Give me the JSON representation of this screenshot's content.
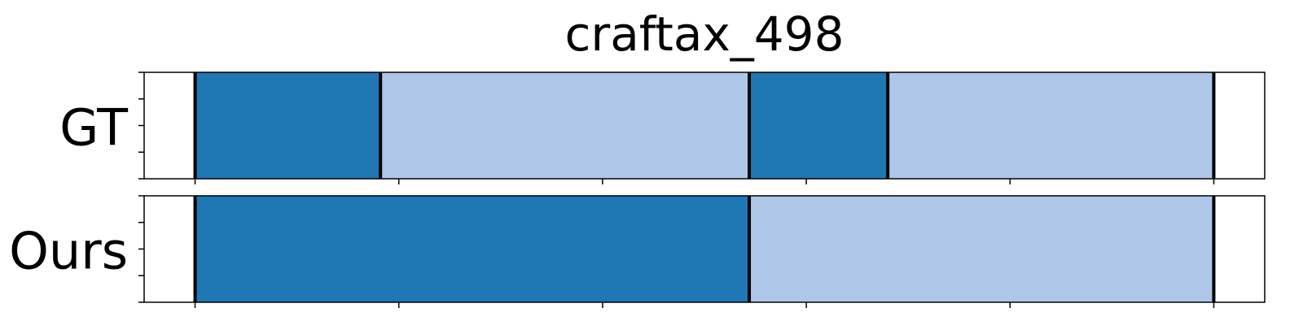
{
  "chart_data": {
    "type": "segmentation-timeline",
    "title": "craftax_498",
    "x_range": [
      -25,
      525
    ],
    "tick_positions": [
      0,
      100,
      200,
      300,
      400,
      500
    ],
    "colors": {
      "dark": "#1f77b4",
      "light": "#aec7e8",
      "boundary": "#000000"
    },
    "rows": [
      {
        "label": "GT",
        "segments": [
          {
            "start": 0,
            "end": 91,
            "color": "dark"
          },
          {
            "start": 91,
            "end": 272,
            "color": "light"
          },
          {
            "start": 272,
            "end": 340,
            "color": "dark"
          },
          {
            "start": 340,
            "end": 500,
            "color": "light"
          }
        ],
        "boundaries": [
          0,
          91,
          272,
          340,
          500
        ]
      },
      {
        "label": "Ours",
        "segments": [
          {
            "start": 0,
            "end": 272,
            "color": "dark"
          },
          {
            "start": 272,
            "end": 500,
            "color": "light"
          }
        ],
        "boundaries": [
          0,
          272,
          500
        ]
      }
    ]
  }
}
